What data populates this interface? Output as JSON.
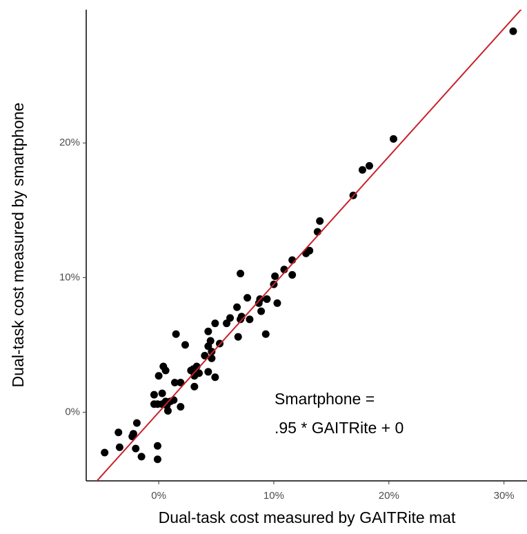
{
  "chart_data": {
    "type": "scatter",
    "x_label": "Dual-task cost measured by GAITRite mat",
    "y_label": "Dual-task cost measured by smartphone",
    "annotation": [
      "Smartphone =",
      ".95 * GAITRite + 0"
    ],
    "xlim": [
      -6.3,
      32
    ],
    "ylim": [
      -5.1,
      29.9
    ],
    "xticks": [
      {
        "value": 0,
        "label": "0%"
      },
      {
        "value": 10,
        "label": "10%"
      },
      {
        "value": 20,
        "label": "20%"
      },
      {
        "value": 30,
        "label": "30%"
      }
    ],
    "yticks": [
      {
        "value": 0,
        "label": "0%"
      },
      {
        "value": 10,
        "label": "10%"
      },
      {
        "value": 20,
        "label": "20%"
      }
    ],
    "color": "#000000",
    "fit": {
      "slope": 0.95,
      "intercept": 0,
      "color": "#c8202a"
    },
    "x": [
      30.8,
      20.4,
      18.3,
      17.7,
      16.9,
      14.0,
      13.8,
      13.1,
      12.8,
      11.6,
      10.9,
      11.6,
      10.1,
      10.0,
      7.1,
      10.3,
      9.4,
      8.8,
      8.7,
      8.9,
      7.7,
      6.8,
      7.2,
      7.1,
      7.9,
      6.2,
      5.9,
      6.9,
      9.3,
      4.9,
      5.3,
      4.3,
      4.5,
      4.3,
      4.6,
      4.0,
      4.6,
      4.9,
      4.3,
      1.5,
      2.3,
      3.3,
      3.0,
      3.5,
      3.1,
      2.8,
      3.1,
      1.9,
      1.4,
      0.4,
      0.6,
      0.0,
      1.9,
      1.3,
      1.0,
      0.7,
      0.6,
      0.8,
      0.3,
      -0.4,
      -0.4,
      -0.1,
      0.3,
      -1.9,
      -2.2,
      -2.3,
      -3.5,
      -3.4,
      -2.0,
      -4.7,
      -1.5,
      -0.1,
      -0.1
    ],
    "values": [
      28.3,
      20.3,
      18.3,
      18.0,
      16.1,
      14.2,
      13.4,
      12.0,
      11.8,
      11.3,
      10.6,
      10.2,
      10.1,
      9.5,
      10.3,
      8.1,
      8.4,
      8.4,
      8.1,
      7.5,
      8.5,
      7.8,
      7.1,
      6.9,
      6.9,
      7.0,
      6.6,
      5.6,
      5.8,
      6.6,
      5.1,
      6.0,
      5.3,
      4.9,
      4.5,
      4.2,
      4.0,
      2.6,
      3.0,
      5.8,
      5.0,
      3.4,
      3.2,
      2.9,
      2.7,
      3.1,
      1.9,
      2.2,
      2.2,
      3.4,
      3.1,
      2.7,
      0.4,
      0.9,
      0.8,
      0.5,
      0.8,
      0.1,
      1.4,
      1.3,
      0.6,
      0.6,
      0.6,
      -0.8,
      -1.6,
      -1.8,
      -1.5,
      -2.6,
      -2.7,
      -3.0,
      -3.3,
      -2.5,
      -3.5
    ]
  }
}
